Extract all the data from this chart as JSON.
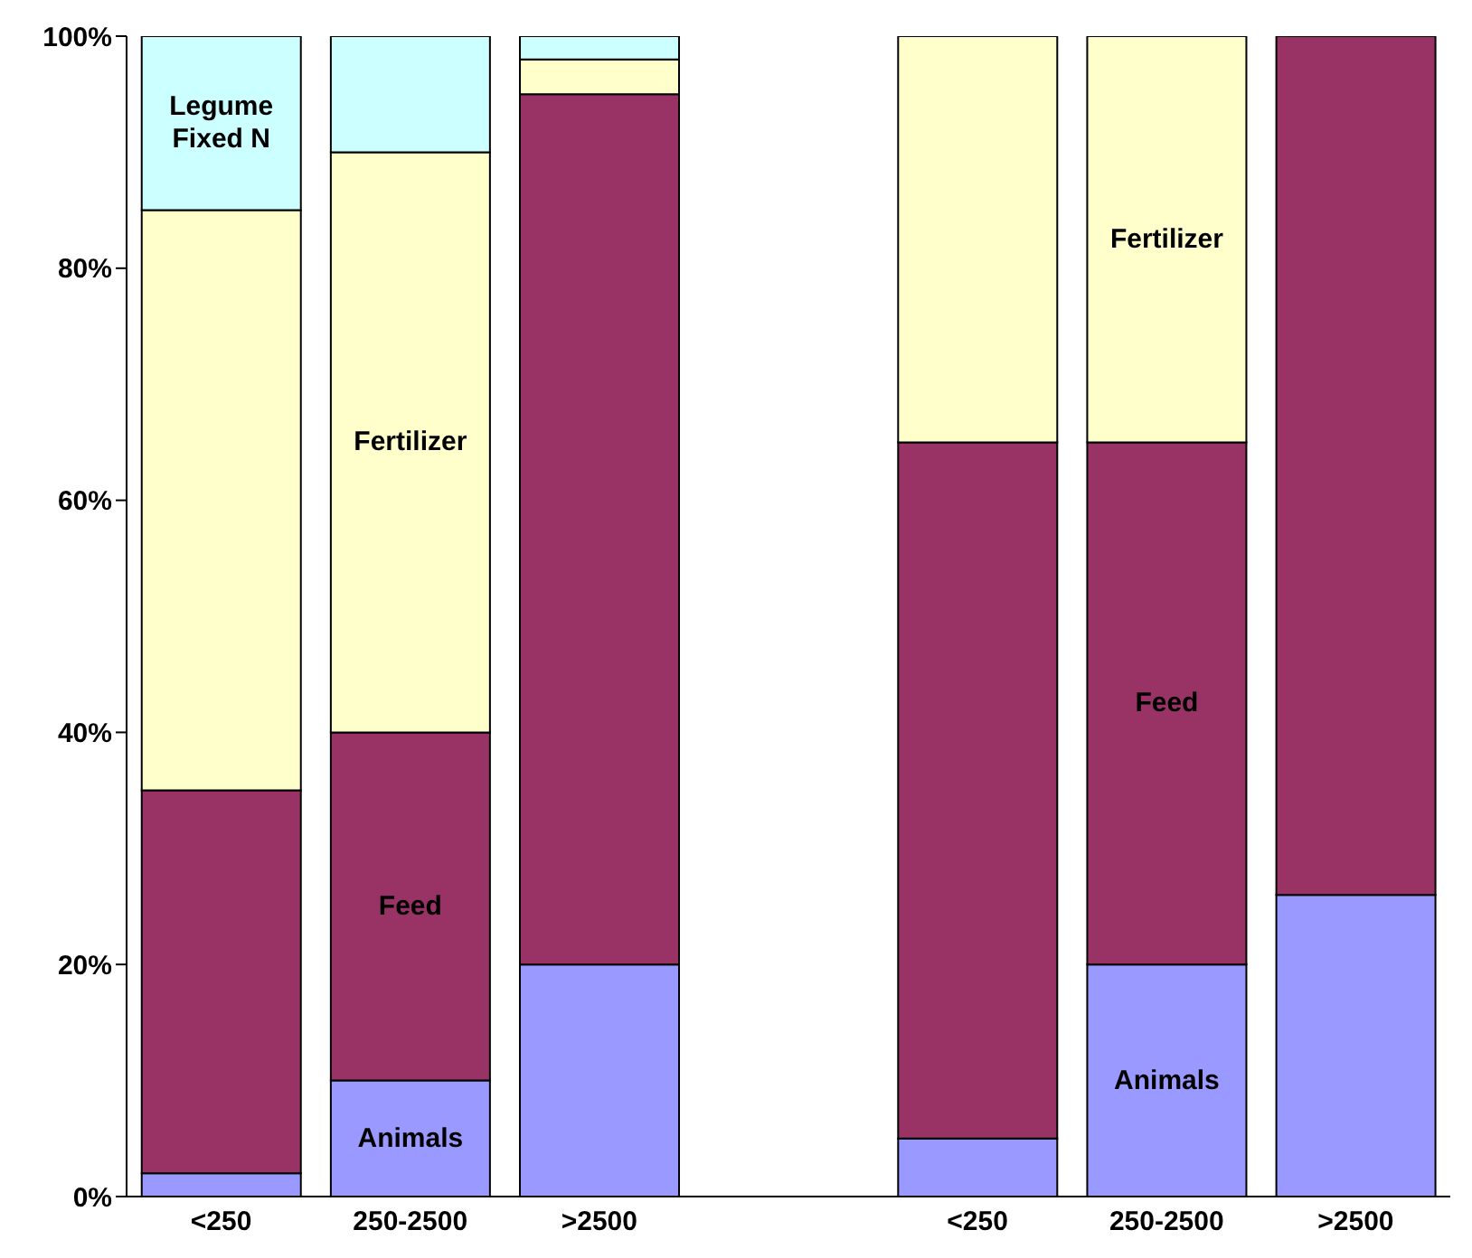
{
  "chart_data": {
    "type": "bar",
    "stacked": true,
    "legend": false,
    "grid": false,
    "categories": [
      "<250",
      "250-2500",
      ">2500",
      null,
      "<250",
      "250-2500",
      ">2500"
    ],
    "series": [
      {
        "name": "Animals",
        "color": "#9999ff",
        "values": [
          2,
          10,
          20,
          null,
          5,
          20,
          26
        ]
      },
      {
        "name": "Feed",
        "color": "#993366",
        "values": [
          33,
          30,
          75,
          null,
          60,
          45,
          74
        ]
      },
      {
        "name": "Fertilizer",
        "color": "#ffffcc",
        "values": [
          50,
          50,
          3,
          null,
          35,
          35,
          0
        ]
      },
      {
        "name": "Legume Fixed N",
        "color": "#ccffff",
        "values": [
          15,
          10,
          2,
          null,
          0,
          0,
          0
        ]
      }
    ],
    "ylim": [
      0,
      100
    ],
    "yticks": [
      {
        "value": 0,
        "label": "0%"
      },
      {
        "value": 20,
        "label": "20%"
      },
      {
        "value": 40,
        "label": "40%"
      },
      {
        "value": 60,
        "label": "60%"
      },
      {
        "value": 80,
        "label": "80%"
      },
      {
        "value": 100,
        "label": "100%"
      }
    ]
  }
}
